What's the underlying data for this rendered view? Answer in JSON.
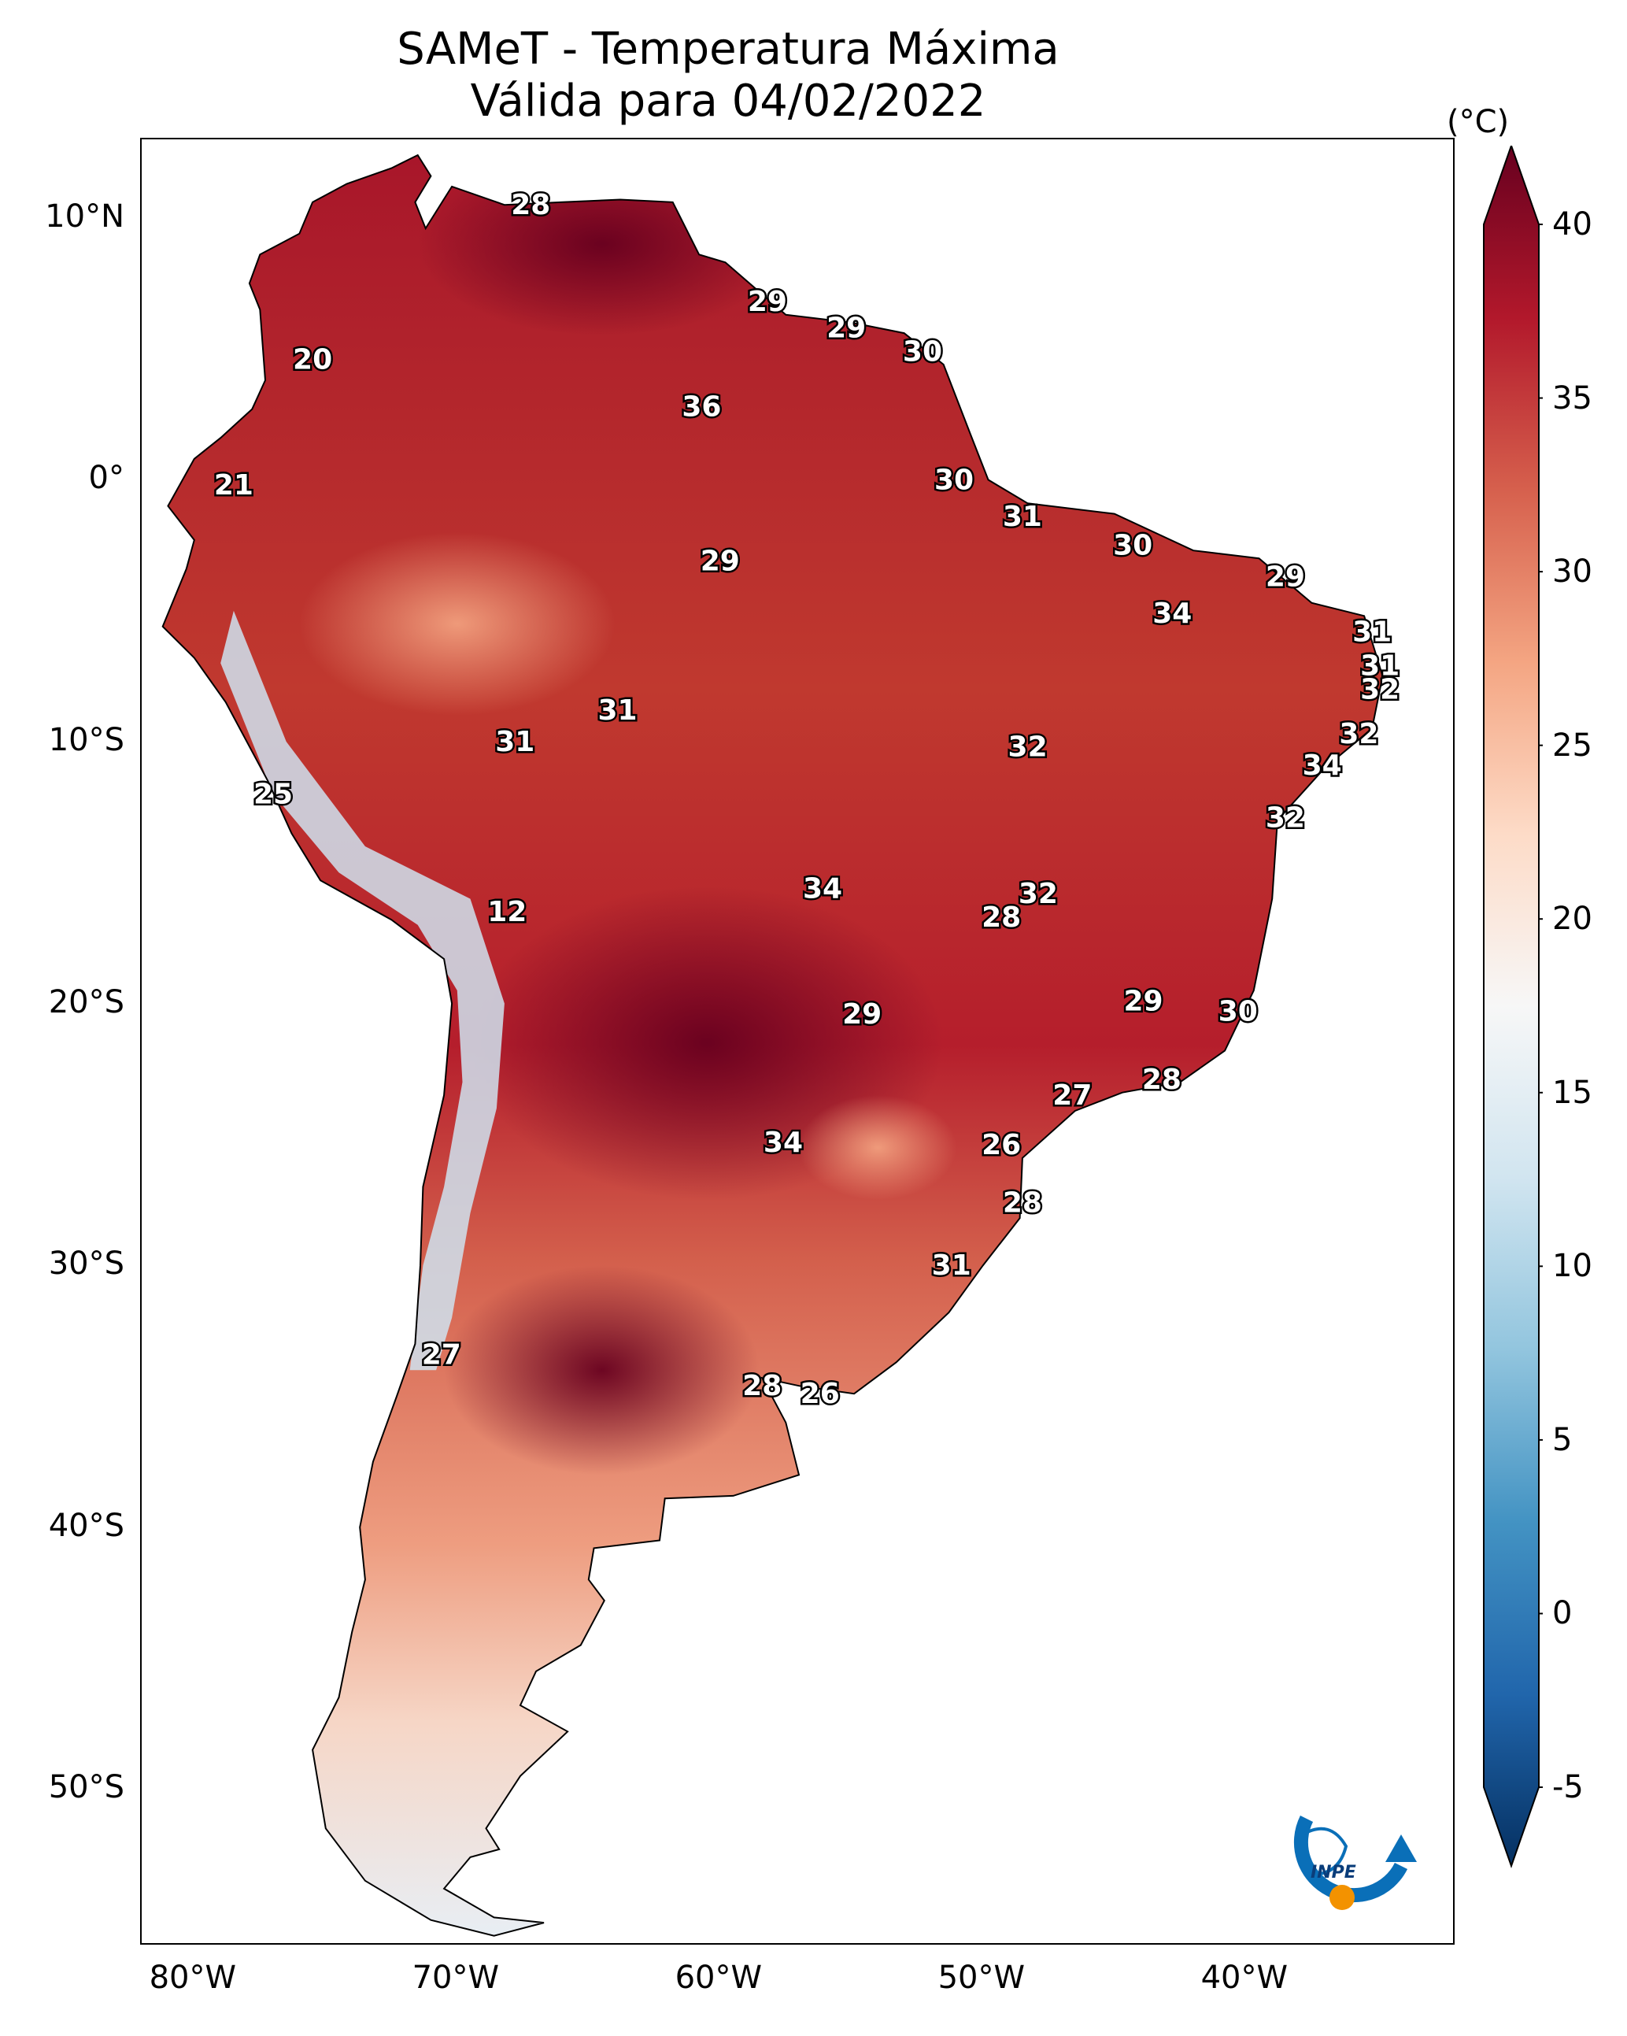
{
  "title": {
    "line1": "SAMeT - Temperatura Máxima",
    "line2": "Válida para 04/02/2022"
  },
  "map": {
    "lon_range": [
      -82.0,
      -32.0
    ],
    "lat_range": [
      -56.0,
      13.0
    ],
    "lat_ticks": [
      {
        "value": 10,
        "label": "10°N"
      },
      {
        "value": 0,
        "label": "0°"
      },
      {
        "value": -10,
        "label": "10°S"
      },
      {
        "value": -20,
        "label": "20°S"
      },
      {
        "value": -30,
        "label": "30°S"
      },
      {
        "value": -40,
        "label": "40°S"
      },
      {
        "value": -50,
        "label": "50°S"
      }
    ],
    "lon_ticks": [
      {
        "value": -80,
        "label": "80°W"
      },
      {
        "value": -70,
        "label": "70°W"
      },
      {
        "value": -60,
        "label": "60°W"
      },
      {
        "value": -50,
        "label": "50°W"
      },
      {
        "value": -40,
        "label": "40°W"
      }
    ],
    "city_values": [
      {
        "lon": -67.2,
        "lat": 10.5,
        "value": "28"
      },
      {
        "lon": -75.5,
        "lat": 4.6,
        "value": "20"
      },
      {
        "lon": -78.5,
        "lat": -0.2,
        "value": "21"
      },
      {
        "lon": -58.2,
        "lat": 6.8,
        "value": "29"
      },
      {
        "lon": -55.2,
        "lat": 5.8,
        "value": "29"
      },
      {
        "lon": -52.3,
        "lat": 4.9,
        "value": "30"
      },
      {
        "lon": -60.7,
        "lat": 2.8,
        "value": "36"
      },
      {
        "lon": -51.1,
        "lat": 0.0,
        "value": "30"
      },
      {
        "lon": -48.5,
        "lat": -1.4,
        "value": "31"
      },
      {
        "lon": -60.0,
        "lat": -3.1,
        "value": "29"
      },
      {
        "lon": -44.3,
        "lat": -2.5,
        "value": "30"
      },
      {
        "lon": -38.5,
        "lat": -3.7,
        "value": "29"
      },
      {
        "lon": -42.8,
        "lat": -5.1,
        "value": "34"
      },
      {
        "lon": -35.2,
        "lat": -5.8,
        "value": "31"
      },
      {
        "lon": -34.9,
        "lat": -7.1,
        "value": "31"
      },
      {
        "lon": -34.9,
        "lat": -8.0,
        "value": "32"
      },
      {
        "lon": -35.7,
        "lat": -9.7,
        "value": "32"
      },
      {
        "lon": -37.1,
        "lat": -10.9,
        "value": "34"
      },
      {
        "lon": -38.5,
        "lat": -12.9,
        "value": "32"
      },
      {
        "lon": -48.3,
        "lat": -10.2,
        "value": "32"
      },
      {
        "lon": -63.9,
        "lat": -8.8,
        "value": "31"
      },
      {
        "lon": -67.8,
        "lat": -10.0,
        "value": "31"
      },
      {
        "lon": -77.0,
        "lat": -12.0,
        "value": "25"
      },
      {
        "lon": -68.1,
        "lat": -16.5,
        "value": "12"
      },
      {
        "lon": -56.1,
        "lat": -15.6,
        "value": "34"
      },
      {
        "lon": -49.3,
        "lat": -16.7,
        "value": "28"
      },
      {
        "lon": -47.9,
        "lat": -15.8,
        "value": "32"
      },
      {
        "lon": -54.6,
        "lat": -20.4,
        "value": "29"
      },
      {
        "lon": -43.9,
        "lat": -19.9,
        "value": "29"
      },
      {
        "lon": -40.3,
        "lat": -20.3,
        "value": "30"
      },
      {
        "lon": -43.2,
        "lat": -22.9,
        "value": "28"
      },
      {
        "lon": -46.6,
        "lat": -23.5,
        "value": "27"
      },
      {
        "lon": -57.6,
        "lat": -25.3,
        "value": "34"
      },
      {
        "lon": -49.3,
        "lat": -25.4,
        "value": "26"
      },
      {
        "lon": -48.5,
        "lat": -27.6,
        "value": "28"
      },
      {
        "lon": -51.2,
        "lat": -30.0,
        "value": "31"
      },
      {
        "lon": -70.6,
        "lat": -33.4,
        "value": "27"
      },
      {
        "lon": -58.4,
        "lat": -34.6,
        "value": "28"
      },
      {
        "lon": -56.2,
        "lat": -34.9,
        "value": "26"
      }
    ]
  },
  "colorbar": {
    "unit": "(°C)",
    "min": -5,
    "max": 40,
    "ticks": [
      "40",
      "35",
      "30",
      "25",
      "20",
      "15",
      "10",
      "5",
      "0",
      "-5"
    ],
    "colors": [
      "#053061",
      "#2166ac",
      "#4393c3",
      "#92c5de",
      "#d1e5f0",
      "#f7f7f7",
      "#fddbc7",
      "#f4a582",
      "#d6604d",
      "#b2182b",
      "#67001f"
    ]
  },
  "logo": {
    "text": "INPE"
  }
}
